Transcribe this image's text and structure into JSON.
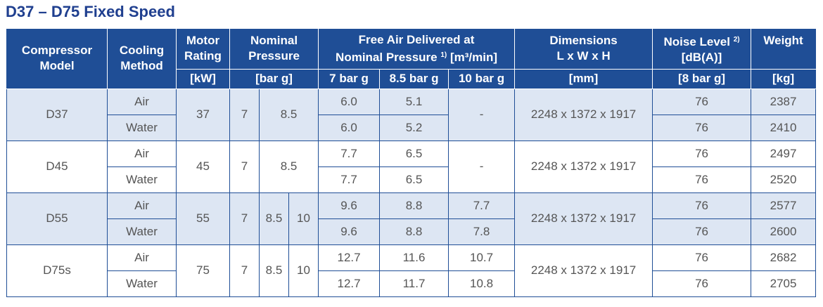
{
  "title": "D37 – D75 Fixed Speed",
  "headers": {
    "model": "Compressor Model",
    "cooling": "Cooling Method",
    "motor": "Motor Rating",
    "motor_unit": "[kW]",
    "pressure": "Nominal Pressure",
    "pressure_unit": "[bar g]",
    "fad": "Free Air Delivered at",
    "fad_line2": "Nominal Pressure",
    "fad_sup": "1)",
    "fad_unit": "[m³/min]",
    "fad_7": "7 bar g",
    "fad_85": "8.5 bar g",
    "fad_10": "10 bar g",
    "dims": "Dimensions",
    "dims_line2": "L x W x H",
    "dims_unit": "[mm]",
    "noise": "Noise Level",
    "noise_sup": "2)",
    "noise_line2": "[dB(A)]",
    "noise_unit": "[8 bar g]",
    "weight": "Weight",
    "weight_unit": "[kg]"
  },
  "groups": [
    {
      "model": "D37",
      "motor": "37",
      "p1": "7",
      "p2": "8.5",
      "p3": "",
      "fad10": "-",
      "dims": "2248 x 1372 x 1917",
      "rows": [
        {
          "cooling": "Air",
          "fad7": "6.0",
          "fad85": "5.1",
          "noise": "76",
          "weight": "2387"
        },
        {
          "cooling": "Water",
          "fad7": "6.0",
          "fad85": "5.2",
          "noise": "76",
          "weight": "2410"
        }
      ]
    },
    {
      "model": "D45",
      "motor": "45",
      "p1": "7",
      "p2": "8.5",
      "p3": "",
      "fad10": "-",
      "dims": "2248 x 1372 x 1917",
      "rows": [
        {
          "cooling": "Air",
          "fad7": "7.7",
          "fad85": "6.5",
          "noise": "76",
          "weight": "2497"
        },
        {
          "cooling": "Water",
          "fad7": "7.7",
          "fad85": "6.5",
          "noise": "76",
          "weight": "2520"
        }
      ]
    },
    {
      "model": "D55",
      "motor": "55",
      "p1": "7",
      "p2": "8.5",
      "p3": "10",
      "fad10": "",
      "dims": "2248 x 1372 x 1917",
      "rows": [
        {
          "cooling": "Air",
          "fad7": "9.6",
          "fad85": "8.8",
          "fad10": "7.7",
          "noise": "76",
          "weight": "2577"
        },
        {
          "cooling": "Water",
          "fad7": "9.6",
          "fad85": "8.8",
          "fad10": "7.8",
          "noise": "76",
          "weight": "2600"
        }
      ]
    },
    {
      "model": "D75s",
      "motor": "75",
      "p1": "7",
      "p2": "8.5",
      "p3": "10",
      "fad10": "",
      "dims": "2248 x 1372 x 1917",
      "rows": [
        {
          "cooling": "Air",
          "fad7": "12.7",
          "fad85": "11.6",
          "fad10": "10.7",
          "noise": "76",
          "weight": "2682"
        },
        {
          "cooling": "Water",
          "fad7": "12.7",
          "fad85": "11.7",
          "fad10": "10.8",
          "noise": "76",
          "weight": "2705"
        }
      ]
    }
  ]
}
